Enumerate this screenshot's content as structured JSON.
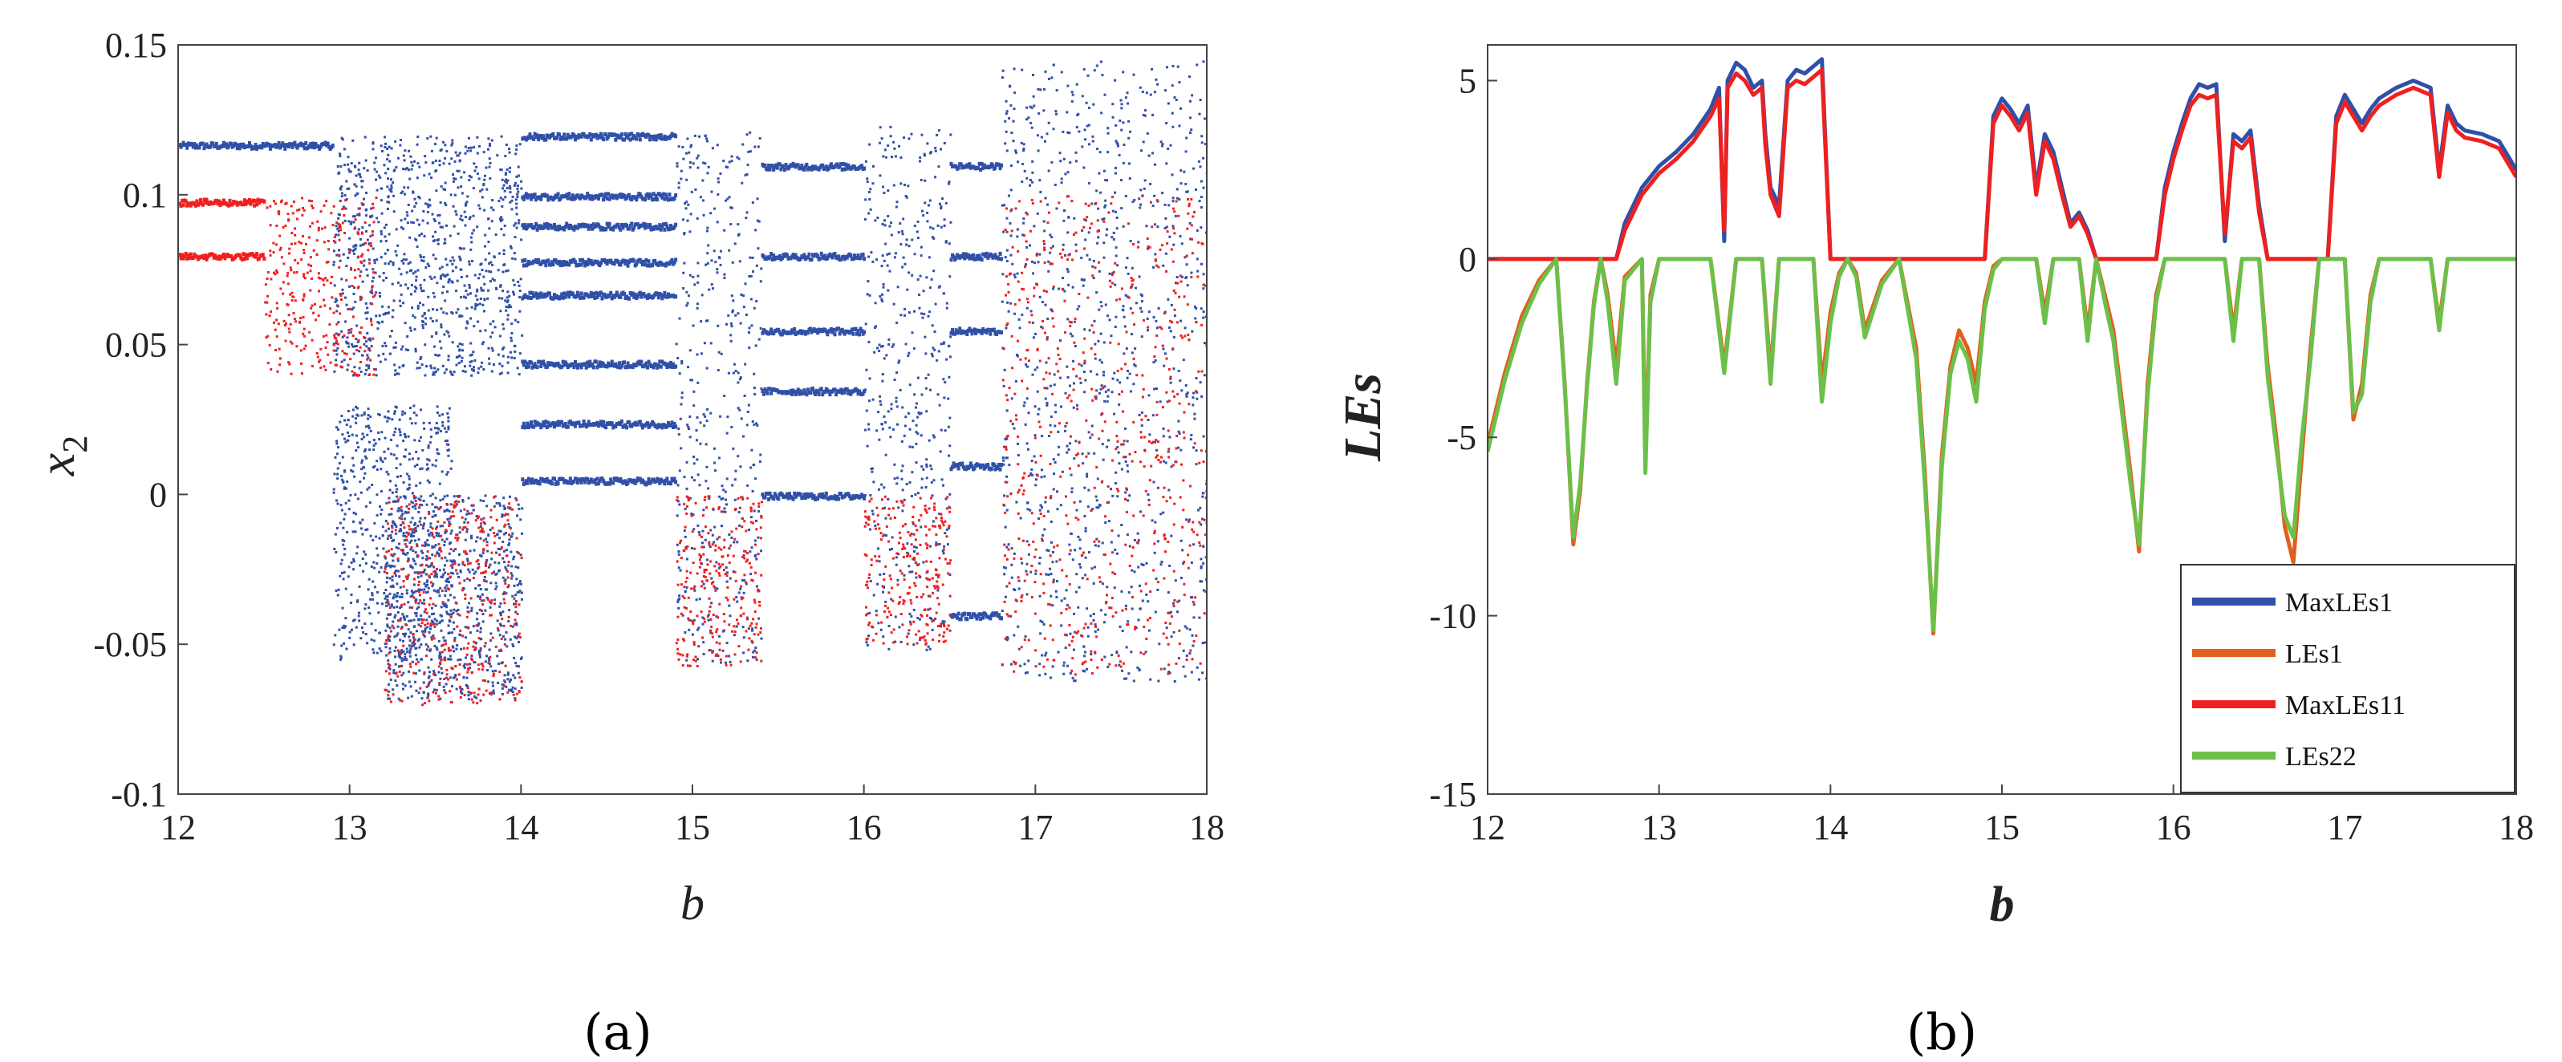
{
  "chart_data": [
    {
      "type": "scatter",
      "panel": "a",
      "caption": "(a)",
      "xlabel": "b",
      "ylabel_base": "x",
      "ylabel_sub": "2",
      "xlim": [
        12,
        18
      ],
      "ylim": [
        -0.1,
        0.15
      ],
      "xticks": [
        12,
        13,
        14,
        15,
        16,
        17,
        18
      ],
      "xtick_labels": [
        "12",
        "13",
        "14",
        "15",
        "16",
        "17",
        "18"
      ],
      "yticks": [
        -0.1,
        -0.05,
        0,
        0.05,
        0.1,
        0.15
      ],
      "ytick_labels": [
        "-0.1",
        "-0.05",
        "0",
        "0.05",
        "0.1",
        "0.15"
      ],
      "colors": {
        "series1": "#3050a8",
        "series2": "#ee2020"
      },
      "grid": false,
      "series": [
        {
          "color": "#3050a8",
          "regions": [
            {
              "x": [
                12.0,
                12.9
              ],
              "lines": [
                0.117
              ]
            },
            {
              "x": [
                12.9,
                14.0
              ],
              "band": [
                0.04,
                0.12
              ]
            },
            {
              "x": [
                12.9,
                13.6
              ],
              "band": [
                -0.055,
                0.03
              ]
            },
            {
              "x": [
                13.2,
                14.0
              ],
              "band": [
                -0.068,
                0.0
              ]
            },
            {
              "x": [
                14.0,
                14.9
              ],
              "lines": [
                0.12,
                0.1,
                0.09,
                0.078,
                0.067,
                0.044,
                0.024,
                0.005
              ]
            },
            {
              "x": [
                14.9,
                15.4
              ],
              "band": [
                -0.057,
                0.122
              ]
            },
            {
              "x": [
                15.4,
                16.0
              ],
              "lines": [
                0.11,
                0.08,
                0.055,
                0.035,
                0.0
              ]
            },
            {
              "x": [
                16.0,
                16.5
              ],
              "band": [
                -0.052,
                0.123
              ]
            },
            {
              "x": [
                16.5,
                16.8
              ],
              "lines": [
                0.11,
                0.08,
                0.055,
                0.01,
                -0.04
              ]
            },
            {
              "x": [
                16.8,
                18.0
              ],
              "band": [
                -0.062,
                0.145
              ]
            }
          ]
        },
        {
          "color": "#ee2020",
          "regions": [
            {
              "x": [
                12.0,
                12.5
              ],
              "lines": [
                0.098,
                0.08
              ]
            },
            {
              "x": [
                12.5,
                13.15
              ],
              "band": [
                0.04,
                0.1
              ]
            },
            {
              "x": [
                13.2,
                14.0
              ],
              "band": [
                -0.07,
                0.0
              ]
            },
            {
              "x": [
                14.9,
                15.4
              ],
              "band": [
                -0.057,
                0.0
              ]
            },
            {
              "x": [
                16.0,
                16.5
              ],
              "band": [
                -0.05,
                0.0
              ]
            },
            {
              "x": [
                16.8,
                18.0
              ],
              "band": [
                -0.06,
                0.1
              ]
            }
          ]
        }
      ]
    },
    {
      "type": "line",
      "panel": "b",
      "caption": "(b)",
      "xlabel": "b",
      "ylabel": "LEs",
      "xlim": [
        12,
        18
      ],
      "ylim": [
        -15,
        6
      ],
      "xticks": [
        12,
        13,
        14,
        15,
        16,
        17,
        18
      ],
      "xtick_labels": [
        "12",
        "13",
        "14",
        "15",
        "16",
        "17",
        "18"
      ],
      "yticks": [
        -15,
        -10,
        -5,
        0,
        5
      ],
      "ytick_labels": [
        "-15",
        "-10",
        "-5",
        "0",
        "5"
      ],
      "grid": false,
      "legend_position": "bottom-right",
      "series": [
        {
          "name": "MaxLEs1",
          "color": "#3050a8",
          "x": [
            12.0,
            12.75,
            12.8,
            12.9,
            13.0,
            13.1,
            13.2,
            13.3,
            13.35,
            13.38,
            13.4,
            13.45,
            13.5,
            13.55,
            13.6,
            13.62,
            13.65,
            13.7,
            13.75,
            13.8,
            13.85,
            13.9,
            13.95,
            14.0,
            14.9,
            14.95,
            15.0,
            15.05,
            15.1,
            15.15,
            15.2,
            15.25,
            15.3,
            15.35,
            15.4,
            15.45,
            15.5,
            15.55,
            15.9,
            15.95,
            16.0,
            16.05,
            16.1,
            16.15,
            16.2,
            16.25,
            16.3,
            16.35,
            16.4,
            16.45,
            16.5,
            16.55,
            16.9,
            16.95,
            17.0,
            17.05,
            17.1,
            17.15,
            17.2,
            17.3,
            17.4,
            17.5,
            17.55,
            17.6,
            17.65,
            17.7,
            17.8,
            17.9,
            18.0
          ],
          "y": [
            0.0,
            0.0,
            1.0,
            2.0,
            2.6,
            3.0,
            3.5,
            4.2,
            4.8,
            0.5,
            5.0,
            5.5,
            5.3,
            4.8,
            5.0,
            3.5,
            2.0,
            1.5,
            5.0,
            5.3,
            5.2,
            5.4,
            5.6,
            0.0,
            0.0,
            4.0,
            4.5,
            4.2,
            3.8,
            4.3,
            2.0,
            3.5,
            3.0,
            2.0,
            1.0,
            1.3,
            0.8,
            0.0,
            0.0,
            2.0,
            3.0,
            3.8,
            4.5,
            4.9,
            4.8,
            4.9,
            0.5,
            3.5,
            3.3,
            3.6,
            1.5,
            0.0,
            0.0,
            4.0,
            4.6,
            4.2,
            3.8,
            4.2,
            4.5,
            4.8,
            5.0,
            4.8,
            2.5,
            4.3,
            3.8,
            3.6,
            3.5,
            3.3,
            2.5
          ]
        },
        {
          "name": "LEs1",
          "color": "#e06020",
          "x": [
            12.0,
            12.1,
            12.2,
            12.3,
            12.4,
            12.45,
            12.5,
            12.54,
            12.58,
            12.62,
            12.66,
            12.7,
            12.75,
            12.8,
            12.9,
            12.92,
            12.95,
            13.0,
            13.3,
            13.38,
            13.45,
            13.6,
            13.65,
            13.7,
            13.9,
            13.95,
            14.0,
            14.05,
            14.1,
            14.15,
            14.2,
            14.3,
            14.4,
            14.5,
            14.55,
            14.6,
            14.65,
            14.7,
            14.75,
            14.8,
            14.85,
            14.9,
            14.95,
            15.0,
            15.05,
            15.2,
            15.25,
            15.3,
            15.45,
            15.5,
            15.55,
            15.6,
            15.65,
            15.7,
            15.75,
            15.8,
            15.85,
            15.9,
            15.95,
            16.0,
            16.3,
            16.35,
            16.4,
            16.5,
            16.55,
            16.6,
            16.65,
            16.7,
            16.75,
            16.8,
            16.85,
            17.0,
            17.05,
            17.1,
            17.15,
            17.2,
            17.5,
            17.55,
            17.6,
            18.0
          ],
          "y": [
            -5.2,
            -3.2,
            -1.6,
            -0.6,
            0.0,
            -3.5,
            -8.0,
            -6.5,
            -3.5,
            -1.2,
            0.0,
            -1.0,
            -3.0,
            -0.5,
            0.0,
            -5.5,
            -1.0,
            0.0,
            0.0,
            -3.0,
            0.0,
            0.0,
            -3.2,
            0.0,
            0.0,
            -3.5,
            -1.5,
            -0.4,
            0.0,
            -0.4,
            -2.0,
            -0.6,
            0.0,
            -2.5,
            -6.0,
            -10.5,
            -5.5,
            -3.0,
            -2.0,
            -2.5,
            -3.5,
            -1.2,
            -0.2,
            0.0,
            0.0,
            0.0,
            -1.5,
            0.0,
            0.0,
            -2.0,
            0.0,
            -1.0,
            -2.0,
            -4.0,
            -6.0,
            -8.2,
            -3.5,
            -1.0,
            0.0,
            0.0,
            0.0,
            -2.0,
            0.0,
            0.0,
            -3.0,
            -5.0,
            -7.5,
            -8.5,
            -5.5,
            -2.5,
            0.0,
            0.0,
            -4.5,
            -3.5,
            -1.0,
            0.0,
            0.0,
            -1.8,
            0.0,
            0.0
          ]
        },
        {
          "name": "MaxLEs11",
          "color": "#ee2020",
          "x": [
            12.0,
            12.75,
            12.8,
            12.9,
            13.0,
            13.1,
            13.2,
            13.3,
            13.35,
            13.38,
            13.4,
            13.45,
            13.5,
            13.55,
            13.6,
            13.62,
            13.65,
            13.7,
            13.75,
            13.8,
            13.85,
            13.9,
            13.95,
            14.0,
            14.9,
            14.95,
            15.0,
            15.05,
            15.1,
            15.15,
            15.2,
            15.25,
            15.3,
            15.35,
            15.4,
            15.45,
            15.5,
            15.55,
            15.9,
            15.95,
            16.0,
            16.05,
            16.1,
            16.15,
            16.2,
            16.25,
            16.3,
            16.35,
            16.4,
            16.45,
            16.5,
            16.55,
            16.9,
            16.95,
            17.0,
            17.05,
            17.1,
            17.15,
            17.2,
            17.3,
            17.4,
            17.5,
            17.55,
            17.6,
            17.65,
            17.7,
            17.8,
            17.9,
            18.0
          ],
          "y": [
            0.0,
            0.0,
            0.8,
            1.8,
            2.4,
            2.8,
            3.3,
            4.0,
            4.5,
            0.8,
            4.8,
            5.2,
            5.0,
            4.6,
            4.8,
            3.2,
            1.8,
            1.2,
            4.8,
            5.0,
            4.9,
            5.1,
            5.3,
            0.0,
            0.0,
            3.8,
            4.3,
            4.0,
            3.6,
            4.1,
            1.8,
            3.3,
            2.8,
            1.8,
            0.9,
            1.2,
            0.7,
            0.0,
            0.0,
            1.8,
            2.8,
            3.6,
            4.3,
            4.6,
            4.5,
            4.6,
            0.7,
            3.3,
            3.1,
            3.4,
            1.3,
            0.0,
            0.0,
            3.8,
            4.4,
            4.0,
            3.6,
            4.0,
            4.3,
            4.6,
            4.8,
            4.6,
            2.3,
            4.1,
            3.6,
            3.4,
            3.3,
            3.1,
            2.3
          ]
        },
        {
          "name": "LEs22",
          "color": "#6cc04a",
          "x": [
            12.0,
            12.1,
            12.2,
            12.3,
            12.4,
            12.45,
            12.5,
            12.54,
            12.58,
            12.62,
            12.66,
            12.7,
            12.75,
            12.8,
            12.9,
            12.92,
            12.95,
            13.0,
            13.3,
            13.38,
            13.45,
            13.6,
            13.65,
            13.7,
            13.9,
            13.95,
            14.0,
            14.05,
            14.1,
            14.15,
            14.2,
            14.3,
            14.4,
            14.5,
            14.55,
            14.6,
            14.65,
            14.7,
            14.75,
            14.8,
            14.85,
            14.9,
            14.95,
            15.0,
            15.05,
            15.2,
            15.25,
            15.3,
            15.45,
            15.5,
            15.55,
            15.6,
            15.65,
            15.7,
            15.75,
            15.8,
            15.85,
            15.9,
            15.95,
            16.0,
            16.3,
            16.35,
            16.4,
            16.5,
            16.55,
            16.6,
            16.65,
            16.7,
            16.75,
            16.8,
            16.85,
            17.0,
            17.05,
            17.1,
            17.15,
            17.2,
            17.5,
            17.55,
            17.6,
            18.0
          ],
          "y": [
            -5.4,
            -3.4,
            -1.8,
            -0.7,
            0.0,
            -3.6,
            -7.8,
            -6.3,
            -3.6,
            -1.3,
            0.0,
            -1.2,
            -3.5,
            -0.6,
            0.0,
            -6.0,
            -1.2,
            0.0,
            0.0,
            -3.2,
            0.0,
            0.0,
            -3.5,
            0.0,
            0.0,
            -4.0,
            -1.8,
            -0.5,
            0.0,
            -0.5,
            -2.2,
            -0.7,
            0.0,
            -2.8,
            -6.3,
            -10.4,
            -5.8,
            -3.2,
            -2.3,
            -2.8,
            -4.0,
            -1.4,
            -0.3,
            0.0,
            0.0,
            0.0,
            -1.8,
            0.0,
            0.0,
            -2.3,
            0.0,
            -1.2,
            -2.3,
            -4.3,
            -6.3,
            -8.0,
            -3.8,
            -1.2,
            0.0,
            0.0,
            0.0,
            -2.3,
            0.0,
            0.0,
            -3.3,
            -5.3,
            -7.2,
            -7.8,
            -5.0,
            -2.8,
            0.0,
            0.0,
            -4.3,
            -3.8,
            -1.2,
            0.0,
            0.0,
            -2.0,
            0.0,
            0.0
          ]
        }
      ]
    }
  ]
}
